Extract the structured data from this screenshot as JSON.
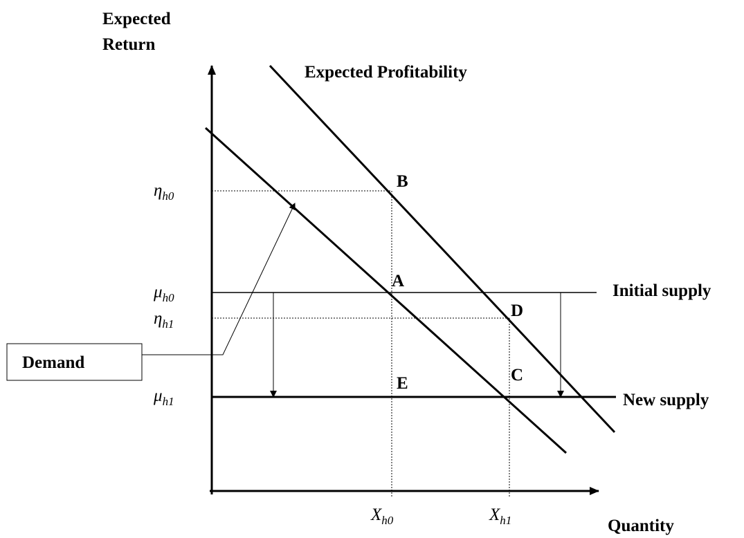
{
  "y_axis_title": [
    "Expected",
    "Return"
  ],
  "x_axis_title": "Quantity",
  "curves": {
    "profitability": "Expected Profitability",
    "initial_supply": "Initial supply",
    "new_supply": "New supply",
    "demand": "Demand"
  },
  "points": {
    "A": "A",
    "B": "B",
    "C": "C",
    "D": "D",
    "E": "E"
  },
  "y_labels": [
    {
      "symbol": "η",
      "sub": "h0"
    },
    {
      "symbol": "μ",
      "sub": "h0"
    },
    {
      "symbol": "η",
      "sub": "h1"
    },
    {
      "symbol": "μ",
      "sub": "h1"
    }
  ],
  "x_labels": [
    {
      "symbol": "X",
      "sub": "h0"
    },
    {
      "symbol": "X",
      "sub": "h1"
    }
  ]
}
